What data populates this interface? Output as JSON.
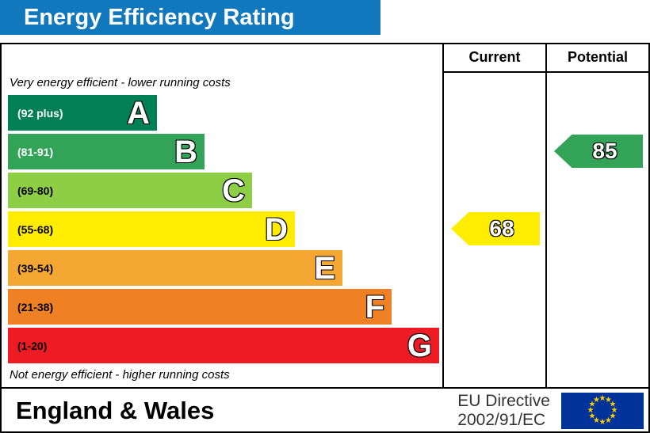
{
  "title": "Energy Efficiency Rating",
  "colors": {
    "title_bg": "#1278be",
    "title_text": "#ffffff",
    "border": "#000000"
  },
  "columns": {
    "current_label": "Current",
    "potential_label": "Potential"
  },
  "notes": {
    "top": "Very energy efficient - lower running costs",
    "bottom": "Not energy efficient - higher running costs"
  },
  "bands": [
    {
      "range": "(92 plus)",
      "letter": "A",
      "color": "#008054",
      "range_text_color": "#ffffff"
    },
    {
      "range": "(81-91)",
      "letter": "B",
      "color": "#33a357",
      "range_text_color": "#ffffff"
    },
    {
      "range": "(69-80)",
      "letter": "C",
      "color": "#8dce46",
      "range_text_color": "#000000"
    },
    {
      "range": "(55-68)",
      "letter": "D",
      "color": "#ffed00",
      "range_text_color": "#000000"
    },
    {
      "range": "(39-54)",
      "letter": "E",
      "color": "#f5a733",
      "range_text_color": "#000000"
    },
    {
      "range": "(21-38)",
      "letter": "F",
      "color": "#ef8023",
      "range_text_color": "#000000"
    },
    {
      "range": "(1-20)",
      "letter": "G",
      "color": "#ed1c24",
      "range_text_color": "#000000"
    }
  ],
  "ratings": {
    "current": {
      "value": "68",
      "band": "D",
      "arrow_color": "#ffed00"
    },
    "potential": {
      "value": "85",
      "band": "B",
      "arrow_color": "#33a357"
    }
  },
  "footer": {
    "region": "England & Wales",
    "directive_line1": "EU Directive",
    "directive_line2": "2002/91/EC",
    "flag": {
      "background": "#003399",
      "star_color": "#ffcc00",
      "star_count": 12
    }
  },
  "chart_data": {
    "type": "bar",
    "title": "Energy Efficiency Rating",
    "categories": [
      "A",
      "B",
      "C",
      "D",
      "E",
      "F",
      "G"
    ],
    "band_ranges": [
      "92 plus",
      "81-91",
      "69-80",
      "55-68",
      "39-54",
      "21-38",
      "1-20"
    ],
    "band_colors": [
      "#008054",
      "#33a357",
      "#8dce46",
      "#ffed00",
      "#f5a733",
      "#ef8023",
      "#ed1c24"
    ],
    "bar_lengths_relative_pct": [
      34,
      45,
      56,
      66,
      77,
      88,
      98
    ],
    "markers": [
      {
        "name": "Current",
        "value": 68,
        "band": "D"
      },
      {
        "name": "Potential",
        "value": 85,
        "band": "B"
      }
    ],
    "annotations": [
      "Very energy efficient - lower running costs",
      "Not energy efficient - higher running costs"
    ],
    "column_headers": [
      "Current",
      "Potential"
    ],
    "footer_text": "England & Wales | EU Directive 2002/91/EC"
  }
}
